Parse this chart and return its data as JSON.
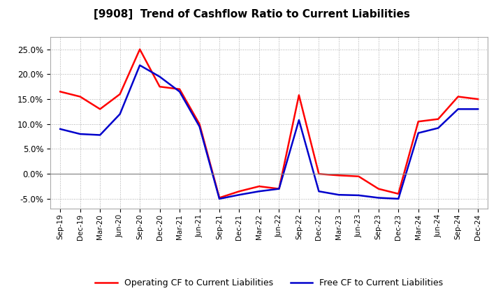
{
  "title": "[9908]  Trend of Cashflow Ratio to Current Liabilities",
  "x_labels": [
    "Sep-19",
    "Dec-19",
    "Mar-20",
    "Jun-20",
    "Sep-20",
    "Dec-20",
    "Mar-21",
    "Jun-21",
    "Sep-21",
    "Dec-21",
    "Mar-22",
    "Jun-22",
    "Sep-22",
    "Dec-22",
    "Mar-23",
    "Jun-23",
    "Sep-23",
    "Dec-23",
    "Mar-24",
    "Jun-24",
    "Sep-24",
    "Dec-24"
  ],
  "operating_cf": [
    16.5,
    15.5,
    13.0,
    16.0,
    25.0,
    17.5,
    17.0,
    10.0,
    -4.8,
    -3.5,
    -2.5,
    -3.0,
    15.8,
    0.0,
    -0.3,
    -0.5,
    -3.0,
    -4.0,
    10.5,
    11.0,
    15.5,
    15.0
  ],
  "free_cf": [
    9.0,
    8.0,
    7.8,
    12.0,
    21.8,
    19.5,
    16.5,
    9.5,
    -5.0,
    -4.2,
    -3.5,
    -3.0,
    10.8,
    -3.5,
    -4.2,
    -4.3,
    -4.8,
    -5.0,
    8.2,
    9.2,
    13.0,
    13.0
  ],
  "operating_cf_color": "#ff0000",
  "free_cf_color": "#0000cc",
  "background_color": "#ffffff",
  "plot_bg_color": "#ffffff",
  "grid_color": "#aaaaaa",
  "ylim": [
    -7.0,
    27.5
  ],
  "yticks": [
    -5.0,
    0.0,
    5.0,
    10.0,
    15.0,
    20.0,
    25.0
  ],
  "legend_op": "Operating CF to Current Liabilities",
  "legend_free": "Free CF to Current Liabilities",
  "line_width": 1.8
}
